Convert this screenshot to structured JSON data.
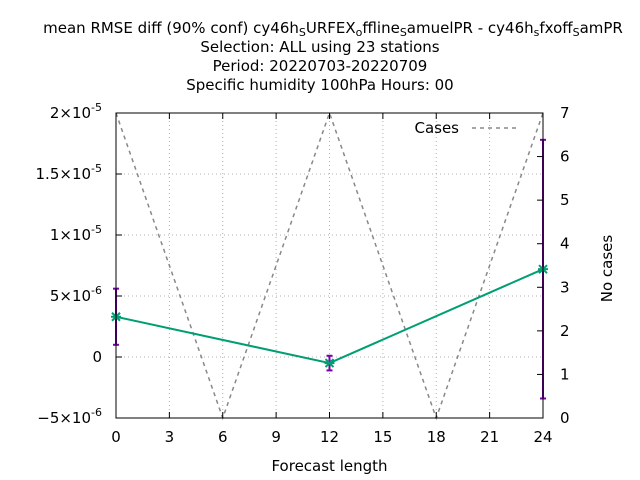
{
  "title": {
    "line1_parts": [
      {
        "t": "mean RMSE diff (90% conf) cy46h"
      },
      {
        "t": "S",
        "sub": true
      },
      {
        "t": "URFEX"
      },
      {
        "t": "o",
        "sub": true
      },
      {
        "t": "ffline"
      },
      {
        "t": "S",
        "sub": true
      },
      {
        "t": "amuelPR - cy46h"
      },
      {
        "t": "s",
        "sub": true
      },
      {
        "t": "fxoff"
      },
      {
        "t": "S",
        "sub": true
      },
      {
        "t": "amPR"
      }
    ],
    "line2": "Selection: ALL using    23 stations",
    "line3": "Period: 20220703-20220709",
    "line4": "Specific humidity 100hPa   Hours:  00"
  },
  "chart_data": {
    "type": "line",
    "xlabel": "Forecast length",
    "ylabel": "",
    "y2label": "No cases",
    "xlim": [
      0,
      24
    ],
    "ylim": [
      -5e-06,
      2e-05
    ],
    "y2lim": [
      0,
      7
    ],
    "xticks": [
      0,
      3,
      6,
      9,
      12,
      15,
      18,
      21,
      24
    ],
    "yticks": [
      {
        "v": 2e-05,
        "label": "2×10",
        "exp": "-5"
      },
      {
        "v": 1.5e-05,
        "label": "1.5×10",
        "exp": "-5"
      },
      {
        "v": 1e-05,
        "label": "1×10",
        "exp": "-5"
      },
      {
        "v": 5e-06,
        "label": "5×10",
        "exp": "-6"
      },
      {
        "v": 0,
        "label": "0",
        "exp": ""
      },
      {
        "v": -5e-06,
        "label": "−5×10",
        "exp": "-6"
      }
    ],
    "y2ticks": [
      0,
      1,
      2,
      3,
      4,
      5,
      6,
      7
    ],
    "grid": true,
    "legend_position": "top-right",
    "series": [
      {
        "name": "",
        "axis": "y",
        "color": "#009e73",
        "x": [
          0,
          12,
          24
        ],
        "y": [
          3.3e-06,
          -5e-07,
          7.2e-06
        ],
        "err_low": [
          1e-06,
          -1.1e-06,
          -3.4e-06
        ],
        "err_high": [
          5.6e-06,
          1e-07,
          1.78e-05
        ],
        "err_color": "#7a00a8"
      },
      {
        "name": "Cases",
        "axis": "y2",
        "color": "#888888",
        "dashed": true,
        "x": [
          0,
          6,
          12,
          18,
          24
        ],
        "y": [
          7,
          0,
          7,
          0,
          7
        ]
      }
    ]
  }
}
